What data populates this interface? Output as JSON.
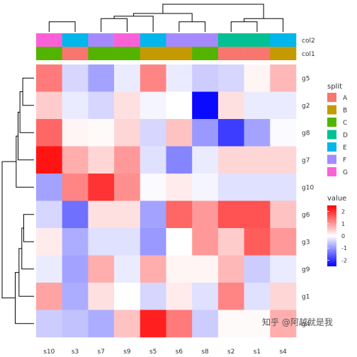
{
  "chart_data": {
    "type": "heatmap",
    "columns": [
      "s10",
      "s3",
      "s7",
      "s9",
      "s5",
      "s6",
      "s8",
      "s2",
      "s1",
      "s4"
    ],
    "rows": [
      "g5",
      "g2",
      "g8",
      "g7",
      "g10",
      "g6",
      "g3",
      "g9",
      "g1",
      "g4"
    ],
    "values": [
      [
        1.3,
        -0.4,
        -0.9,
        -0.2,
        1.2,
        -0.2,
        -0.5,
        -0.4,
        0.1,
        0.7
      ],
      [
        0.5,
        -0.2,
        -0.4,
        0.3,
        -0.1,
        0.0,
        -2.4,
        0.3,
        -0.2,
        -0.2
      ],
      [
        1.5,
        0.1,
        0.05,
        0.4,
        -0.4,
        0.6,
        -1.0,
        -1.9,
        -0.9,
        -0.05
      ],
      [
        2.3,
        0.8,
        0.4,
        1.0,
        -0.3,
        -1.2,
        -0.2,
        0.4,
        0.4,
        0.4
      ],
      [
        -0.9,
        1.2,
        2.0,
        1.1,
        -0.05,
        0.2,
        -0.1,
        -0.3,
        -0.3,
        -0.3
      ],
      [
        -0.4,
        -1.4,
        0.3,
        0.3,
        -0.9,
        1.5,
        1.0,
        1.7,
        1.7,
        0.6
      ],
      [
        0.2,
        -0.8,
        -0.3,
        -0.3,
        -1.0,
        0.0,
        1.0,
        0.5,
        1.6,
        1.0
      ],
      [
        -0.2,
        -0.9,
        0.8,
        -0.2,
        0.8,
        0.1,
        0.1,
        0.7,
        -0.5,
        -0.2
      ],
      [
        0.9,
        -0.8,
        0.3,
        0.0,
        -0.4,
        0.2,
        -0.3,
        1.2,
        -0.3,
        0.4
      ],
      [
        -0.5,
        -0.6,
        -0.8,
        0.6,
        2.2,
        1.3,
        -0.5,
        0.05,
        0.05,
        0.8
      ]
    ],
    "col_annotations": [
      {
        "name": "col2",
        "values": [
          "G",
          "E",
          "F",
          "G",
          "E",
          "F",
          "F",
          "D",
          "D",
          "E"
        ]
      },
      {
        "name": "col1",
        "values": [
          "C",
          "A",
          "C",
          "C",
          "B",
          "B",
          "C",
          "A",
          "A",
          "B"
        ]
      }
    ],
    "legends": [
      {
        "title": "split",
        "entries": [
          {
            "label": "A",
            "color": "#F8766D"
          },
          {
            "label": "B",
            "color": "#C49A00"
          },
          {
            "label": "C",
            "color": "#53B400"
          },
          {
            "label": "D",
            "color": "#00C094"
          },
          {
            "label": "E",
            "color": "#00B6EB"
          },
          {
            "label": "F",
            "color": "#A58AFF"
          },
          {
            "label": "G",
            "color": "#FB61D7"
          }
        ]
      },
      {
        "title": "value",
        "ticks": [
          2,
          1,
          0,
          -1,
          -2
        ],
        "range": [
          -2.5,
          2.5
        ],
        "colors": {
          "low": "#0000FF",
          "mid": "#FFFFFF",
          "high": "#FF0000"
        }
      }
    ],
    "col_dendrogram": [
      [
        0,
        1,
        10
      ],
      [
        2,
        3,
        11
      ],
      [
        11,
        4,
        12
      ],
      [
        5,
        6,
        13
      ],
      [
        12,
        13,
        14
      ],
      [
        7,
        8,
        15
      ],
      [
        15,
        9,
        16
      ],
      [
        14,
        16,
        17
      ]
    ],
    "col_dendrogram_heights": {
      "10": 0.55,
      "11": 0.72,
      "12": 0.85,
      "13": 0.55,
      "14": 1.0,
      "15": 0.55,
      "16": 0.72,
      "17": 1.5
    },
    "row_dendrogram": [
      [
        0,
        1,
        10
      ],
      [
        10,
        2,
        11
      ],
      [
        11,
        3,
        12
      ],
      [
        12,
        4,
        13
      ],
      [
        5,
        6,
        14
      ],
      [
        14,
        7,
        15
      ],
      [
        15,
        8,
        16
      ],
      [
        16,
        9,
        17
      ],
      [
        13,
        17,
        18
      ]
    ],
    "row_dendrogram_heights": {
      "10": 0.6,
      "11": 0.75,
      "12": 0.85,
      "13": 0.95,
      "14": 0.55,
      "15": 0.65,
      "16": 0.8,
      "17": 1.0,
      "18": 1.7
    }
  },
  "watermark": "知乎 @阿越就是我"
}
